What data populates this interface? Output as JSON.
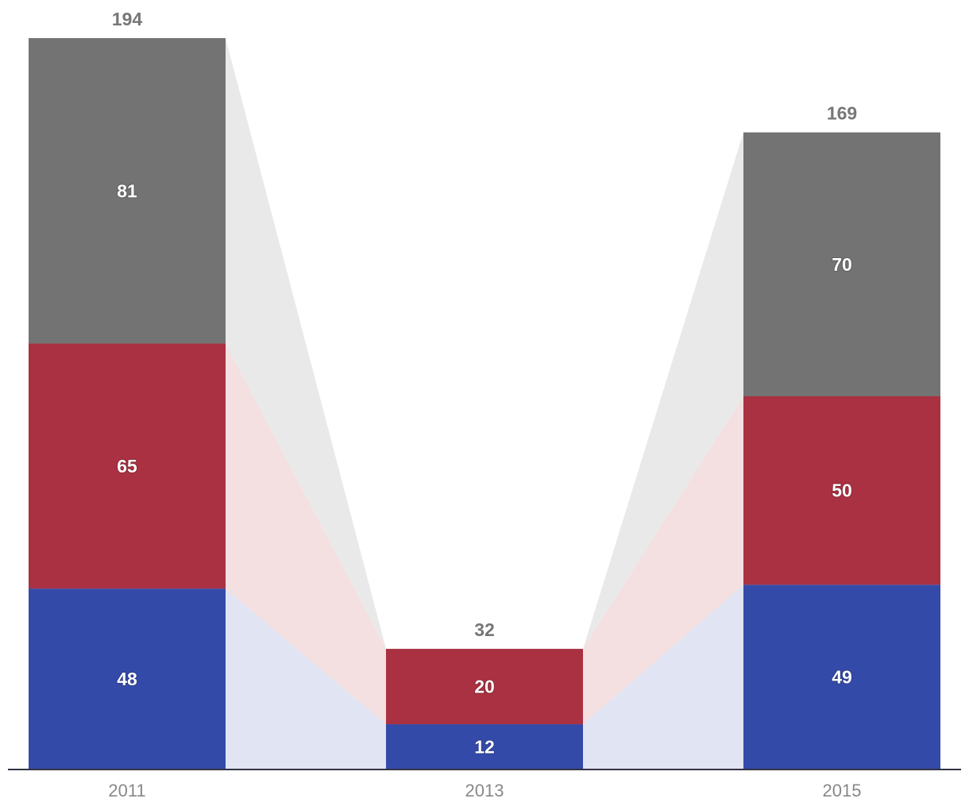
{
  "chart_data": {
    "type": "bar",
    "stacked": true,
    "categories": [
      "2011",
      "2013",
      "2015"
    ],
    "series": [
      {
        "values": [
          48,
          12,
          49
        ],
        "color": "#344aa9",
        "ribbon_color": "#e1e4f2"
      },
      {
        "values": [
          65,
          20,
          50
        ],
        "color": "#a93141",
        "ribbon_color": "#f4dfe1"
      },
      {
        "values": [
          81,
          0,
          70
        ],
        "color": "#737373",
        "ribbon_color": "#e9e9e9"
      }
    ],
    "totals": [
      194,
      32,
      169
    ],
    "ylim": [
      0,
      194
    ],
    "grid": false,
    "legend": "none",
    "axis_color": "#333344"
  }
}
